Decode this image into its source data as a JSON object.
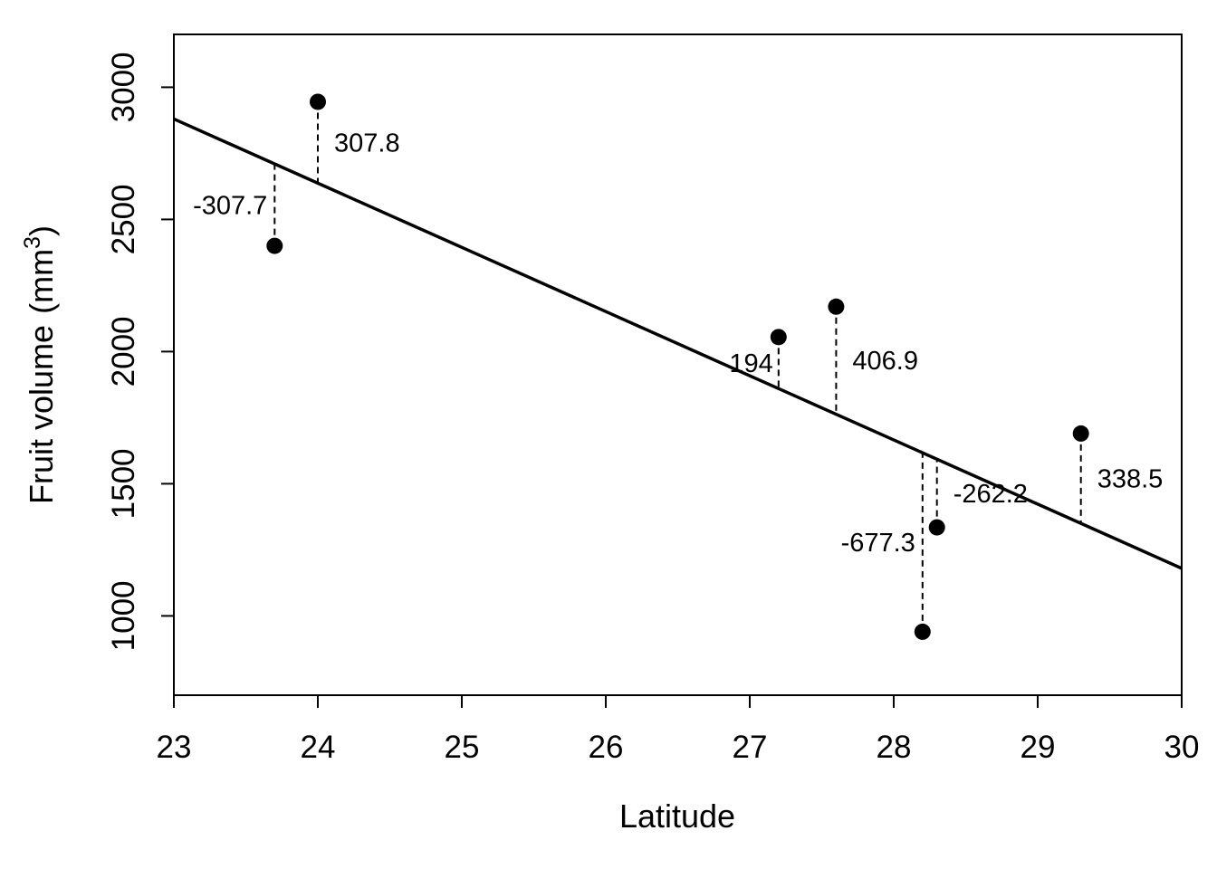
{
  "chart_data": {
    "type": "scatter",
    "title": "",
    "xlabel": "Latitude",
    "ylabel": {
      "text": "Fruit volume",
      "unit_base": "mm",
      "unit_exponent": "3"
    },
    "xlim": [
      23,
      30
    ],
    "ylim": [
      700,
      3200
    ],
    "x_ticks": [
      23,
      24,
      25,
      26,
      27,
      28,
      29,
      30
    ],
    "y_ticks": [
      1000,
      1500,
      2000,
      2500,
      3000
    ],
    "grid": false,
    "legend": "none",
    "points": [
      {
        "x": 23.7,
        "y": 2400,
        "residual_label": "-307.7"
      },
      {
        "x": 24.0,
        "y": 2945,
        "residual_label": "307.8"
      },
      {
        "x": 27.2,
        "y": 2055,
        "residual_label": "194"
      },
      {
        "x": 27.6,
        "y": 2170,
        "residual_label": "406.9"
      },
      {
        "x": 28.2,
        "y": 940,
        "residual_label": "-677.3"
      },
      {
        "x": 28.3,
        "y": 1335,
        "residual_label": "-262.2"
      },
      {
        "x": 29.3,
        "y": 1690,
        "residual_label": "338.5"
      }
    ],
    "fit_line": {
      "x": [
        23,
        30
      ],
      "y": [
        2880,
        1180
      ]
    },
    "colors": {
      "points": "#000000",
      "line": "#000000",
      "axes": "#000000",
      "background": "#ffffff"
    }
  }
}
